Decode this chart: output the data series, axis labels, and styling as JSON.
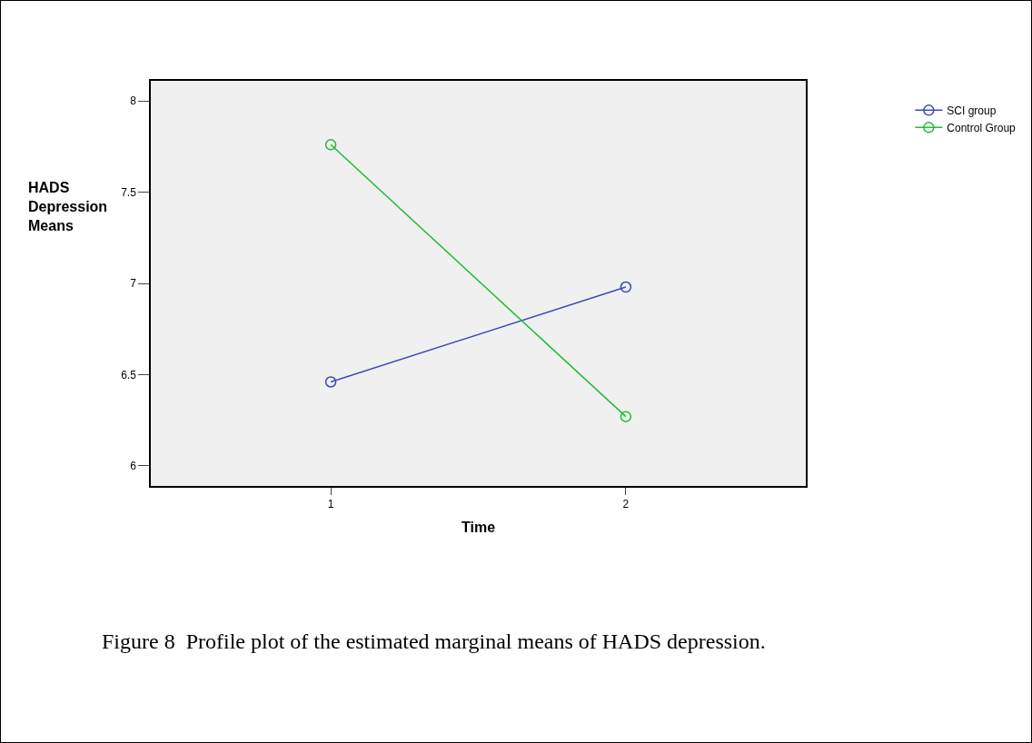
{
  "chart_data": {
    "type": "line",
    "xlabel": "Time",
    "ylabel": "HADS Depression Means",
    "x": [
      1,
      2
    ],
    "series": [
      {
        "name": "SCI group",
        "color": "#3c4bb4",
        "values": [
          6.46,
          6.98
        ]
      },
      {
        "name": "Control Group",
        "color": "#22bb33",
        "values": [
          7.76,
          6.27
        ]
      }
    ],
    "xlim": [
      0.39,
      2.61
    ],
    "xticks": [
      1,
      2
    ],
    "ylim": [
      5.89,
      8.11
    ],
    "yticks": [
      6,
      6.5,
      7,
      7.5,
      8
    ],
    "grid": false,
    "legend": "top right",
    "marker": "circle",
    "line_style": "solid",
    "annotations": [
      "Figure 8  Profile plot of the estimated marginal means of HADS depression."
    ]
  }
}
